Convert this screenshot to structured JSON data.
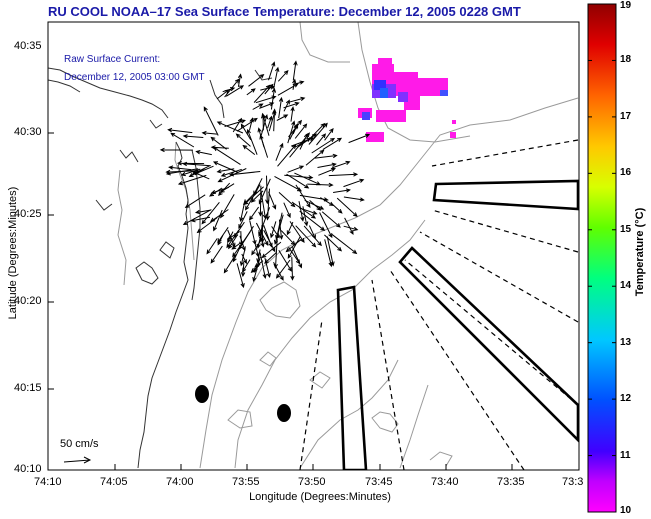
{
  "title": "RU COOL  NOAA–17  Sea Surface Temperature:  December 12, 2005 0228 GMT",
  "legend": {
    "line1": "Raw Surface Current:",
    "line2": "December 12, 2005 03:00 GMT"
  },
  "axes": {
    "ylabel": "Latitude (Degrees:Minutes)",
    "xlabel": "Longitude (Degrees:Minutes)",
    "lat_ticks": [
      "40:35",
      "40:30",
      "40:25",
      "40:20",
      "40:15",
      "40:10"
    ],
    "lon_ticks": [
      "74:10",
      "74:05",
      "74:00",
      "73:55",
      "73:50",
      "73:45",
      "73:40",
      "73:35",
      "73:3"
    ]
  },
  "scale_bar": {
    "label": "50 cm/s"
  },
  "colorbar": {
    "label": "Temperature (°C)",
    "ticks": [
      "19",
      "18",
      "17",
      "16",
      "15",
      "14",
      "13",
      "12",
      "11",
      "10"
    ],
    "min": 10,
    "max": 19
  },
  "colors": {
    "title": "#1a1aa8",
    "contour": "#9a9a9a",
    "coast": "#333333"
  }
}
